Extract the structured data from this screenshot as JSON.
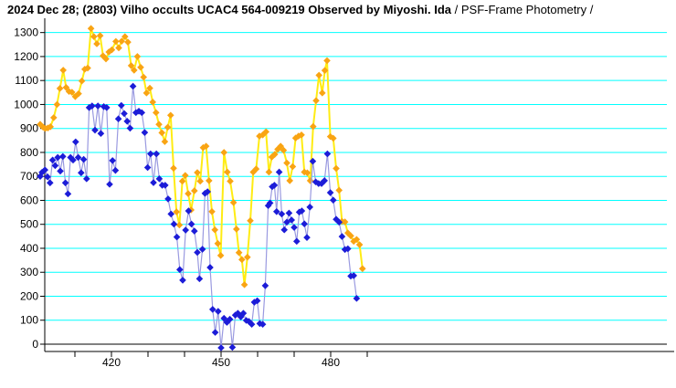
{
  "title": {
    "main": "2024 Dec 28; (2803) Vilho occults UCAC4 564-009219 Observed by Miyoshi. Ida",
    "suffix": " / PSF-Frame Photometry /"
  },
  "chart_data": {
    "type": "line",
    "title": "2024 Dec 28; (2803) Vilho occults UCAC4 564-009219 Observed by Miyoshi. Ida / PSF-Frame Photometry /",
    "xlabel": "",
    "ylabel": "",
    "legend": "none",
    "grid": "horizontal cyan lines at every 100",
    "xlim": [
      401.75,
      572.75
    ],
    "ylim": [
      0,
      1300
    ],
    "x_tick_labels": [
      420,
      450,
      480
    ],
    "x_minor_ticks": [
      410,
      420,
      430,
      440,
      450,
      460,
      470,
      480,
      490
    ],
    "y_ticks": [
      0,
      100,
      200,
      300,
      400,
      500,
      600,
      700,
      800,
      900,
      1000,
      1100,
      1200,
      1300
    ],
    "colors": {
      "background": "#ffffff",
      "grid": "#00ffff",
      "axis": "#000000",
      "zero_line": "#000000",
      "orange_marker": "#f9a413",
      "yellow_line": "#ffec13",
      "blue_marker": "#1c1cd8",
      "blue_line": "#9a9ae0"
    },
    "series": [
      {
        "name": "comparison-star-orange",
        "marker": "diamond",
        "marker_color": "#f9a413",
        "line_color": "#ffec13",
        "points": [
          [
            400.5,
            917
          ],
          [
            401.3,
            905
          ],
          [
            401.9,
            900
          ],
          [
            402.6,
            902
          ],
          [
            403.3,
            907
          ],
          [
            404.2,
            945
          ],
          [
            405.1,
            1000
          ],
          [
            405.9,
            1067
          ],
          [
            406.8,
            1143
          ],
          [
            407.6,
            1071
          ],
          [
            408.4,
            1054
          ],
          [
            409.2,
            1051
          ],
          [
            410.1,
            1033
          ],
          [
            411.0,
            1045
          ],
          [
            411.9,
            1098
          ],
          [
            412.7,
            1147
          ],
          [
            413.5,
            1152
          ],
          [
            414.4,
            1317
          ],
          [
            415.2,
            1283
          ],
          [
            416.0,
            1253
          ],
          [
            416.9,
            1287
          ],
          [
            417.7,
            1203
          ],
          [
            418.5,
            1190
          ],
          [
            419.3,
            1219
          ],
          [
            420.1,
            1228
          ],
          [
            421.2,
            1263
          ],
          [
            422.0,
            1236
          ],
          [
            422.8,
            1264
          ],
          [
            423.7,
            1283
          ],
          [
            424.5,
            1260
          ],
          [
            425.4,
            1162
          ],
          [
            426.2,
            1143
          ],
          [
            427.1,
            1200
          ],
          [
            428.0,
            1155
          ],
          [
            428.8,
            1114
          ],
          [
            429.6,
            1048
          ],
          [
            430.5,
            1068
          ],
          [
            431.3,
            1010
          ],
          [
            432.2,
            966
          ],
          [
            433.0,
            917
          ],
          [
            433.8,
            882
          ],
          [
            434.6,
            845
          ],
          [
            435.4,
            905
          ],
          [
            436.2,
            955
          ],
          [
            437.0,
            734
          ],
          [
            437.8,
            552
          ],
          [
            438.6,
            497
          ],
          [
            439.4,
            680
          ],
          [
            440.2,
            704
          ],
          [
            441.0,
            628
          ],
          [
            441.8,
            560
          ],
          [
            442.7,
            640
          ],
          [
            443.5,
            716
          ],
          [
            444.3,
            680
          ],
          [
            445.1,
            820
          ],
          [
            445.9,
            826
          ],
          [
            446.7,
            682
          ],
          [
            447.5,
            553
          ],
          [
            448.3,
            477
          ],
          [
            449.1,
            420
          ],
          [
            449.9,
            370
          ],
          [
            450.8,
            800
          ],
          [
            451.7,
            718
          ],
          [
            452.5,
            680
          ],
          [
            453.4,
            591
          ],
          [
            454.2,
            480
          ],
          [
            454.9,
            382
          ],
          [
            455.7,
            353
          ],
          [
            456.4,
            248
          ],
          [
            457.2,
            363
          ],
          [
            458.0,
            515
          ],
          [
            458.8,
            718
          ],
          [
            459.6,
            731
          ],
          [
            460.5,
            868
          ],
          [
            461.4,
            873
          ],
          [
            462.3,
            886
          ],
          [
            463.1,
            718
          ],
          [
            463.9,
            781
          ],
          [
            464.7,
            792
          ],
          [
            465.5,
            813
          ],
          [
            466.3,
            826
          ],
          [
            467.1,
            809
          ],
          [
            468.0,
            756
          ],
          [
            468.8,
            682
          ],
          [
            469.6,
            741
          ],
          [
            470.4,
            860
          ],
          [
            471.2,
            868
          ],
          [
            472.0,
            873
          ],
          [
            472.8,
            718
          ],
          [
            473.6,
            715
          ],
          [
            474.4,
            682
          ],
          [
            475.2,
            908
          ],
          [
            476.0,
            1016
          ],
          [
            476.8,
            1122
          ],
          [
            477.7,
            1048
          ],
          [
            478.4,
            1142
          ],
          [
            479.0,
            1183
          ],
          [
            479.9,
            866
          ],
          [
            480.7,
            859
          ],
          [
            481.5,
            733
          ],
          [
            482.3,
            642
          ],
          [
            483.1,
            512
          ],
          [
            483.9,
            510
          ],
          [
            484.7,
            464
          ],
          [
            485.5,
            452
          ],
          [
            486.3,
            429
          ],
          [
            487.1,
            437
          ],
          [
            487.9,
            415
          ],
          [
            488.7,
            315
          ]
        ]
      },
      {
        "name": "target-star-blue",
        "marker": "diamond",
        "marker_color": "#1c1cd8",
        "line_color": "#9a9ae0",
        "points": [
          [
            400.5,
            700
          ],
          [
            401.0,
            717
          ],
          [
            401.8,
            727
          ],
          [
            402.5,
            698
          ],
          [
            403.2,
            673
          ],
          [
            403.9,
            768
          ],
          [
            404.6,
            745
          ],
          [
            405.3,
            779
          ],
          [
            406.0,
            722
          ],
          [
            406.7,
            783
          ],
          [
            407.4,
            673
          ],
          [
            408.1,
            627
          ],
          [
            408.8,
            779
          ],
          [
            409.5,
            768
          ],
          [
            410.2,
            844
          ],
          [
            410.9,
            779
          ],
          [
            411.7,
            715
          ],
          [
            412.4,
            771
          ],
          [
            413.2,
            690
          ],
          [
            413.9,
            987
          ],
          [
            414.7,
            994
          ],
          [
            415.5,
            893
          ],
          [
            416.3,
            994
          ],
          [
            417.1,
            879
          ],
          [
            417.9,
            991
          ],
          [
            418.7,
            987
          ],
          [
            419.5,
            667
          ],
          [
            420.3,
            766
          ],
          [
            421.1,
            725
          ],
          [
            421.9,
            940
          ],
          [
            422.7,
            996
          ],
          [
            423.5,
            962
          ],
          [
            424.3,
            930
          ],
          [
            425.1,
            901
          ],
          [
            425.9,
            1076
          ],
          [
            426.7,
            966
          ],
          [
            427.5,
            972
          ],
          [
            428.3,
            966
          ],
          [
            429.1,
            883
          ],
          [
            429.9,
            737
          ],
          [
            430.7,
            794
          ],
          [
            431.5,
            674
          ],
          [
            432.3,
            794
          ],
          [
            433.1,
            690
          ],
          [
            433.9,
            663
          ],
          [
            434.7,
            663
          ],
          [
            435.5,
            606
          ],
          [
            436.3,
            543
          ],
          [
            437.1,
            501
          ],
          [
            437.9,
            447
          ],
          [
            438.7,
            311
          ],
          [
            439.5,
            267
          ],
          [
            440.3,
            476
          ],
          [
            441.1,
            556
          ],
          [
            441.9,
            501
          ],
          [
            442.7,
            472
          ],
          [
            443.5,
            383
          ],
          [
            444.1,
            273
          ],
          [
            444.9,
            396
          ],
          [
            445.6,
            629
          ],
          [
            446.3,
            636
          ],
          [
            447.0,
            320
          ],
          [
            447.7,
            145
          ],
          [
            448.4,
            49
          ],
          [
            449.2,
            137
          ],
          [
            450.0,
            -15
          ],
          [
            450.8,
            108
          ],
          [
            451.6,
            91
          ],
          [
            452.4,
            104
          ],
          [
            453.1,
            -13
          ],
          [
            453.9,
            121
          ],
          [
            454.6,
            129
          ],
          [
            455.4,
            114
          ],
          [
            456.1,
            129
          ],
          [
            456.9,
            99
          ],
          [
            457.6,
            95
          ],
          [
            458.4,
            83
          ],
          [
            459.1,
            175
          ],
          [
            459.9,
            181
          ],
          [
            460.6,
            86
          ],
          [
            461.4,
            83
          ],
          [
            462.1,
            244
          ],
          [
            462.9,
            578
          ],
          [
            463.4,
            589
          ],
          [
            464.0,
            657
          ],
          [
            464.6,
            663
          ],
          [
            465.2,
            553
          ],
          [
            465.9,
            718
          ],
          [
            466.6,
            543
          ],
          [
            467.3,
            477
          ],
          [
            468.0,
            509
          ],
          [
            468.6,
            547
          ],
          [
            469.3,
            518
          ],
          [
            470.0,
            487
          ],
          [
            470.7,
            429
          ],
          [
            471.4,
            551
          ],
          [
            472.1,
            556
          ],
          [
            472.8,
            502
          ],
          [
            473.5,
            445
          ],
          [
            474.3,
            572
          ],
          [
            475.1,
            763
          ],
          [
            475.9,
            677
          ],
          [
            476.7,
            670
          ],
          [
            477.5,
            670
          ],
          [
            478.3,
            682
          ],
          [
            479.1,
            794
          ],
          [
            479.9,
            632
          ],
          [
            480.7,
            601
          ],
          [
            481.5,
            521
          ],
          [
            482.3,
            509
          ],
          [
            483.1,
            449
          ],
          [
            483.9,
            395
          ],
          [
            484.7,
            398
          ],
          [
            485.5,
            284
          ],
          [
            486.3,
            286
          ],
          [
            487.1,
            191
          ]
        ]
      }
    ]
  }
}
